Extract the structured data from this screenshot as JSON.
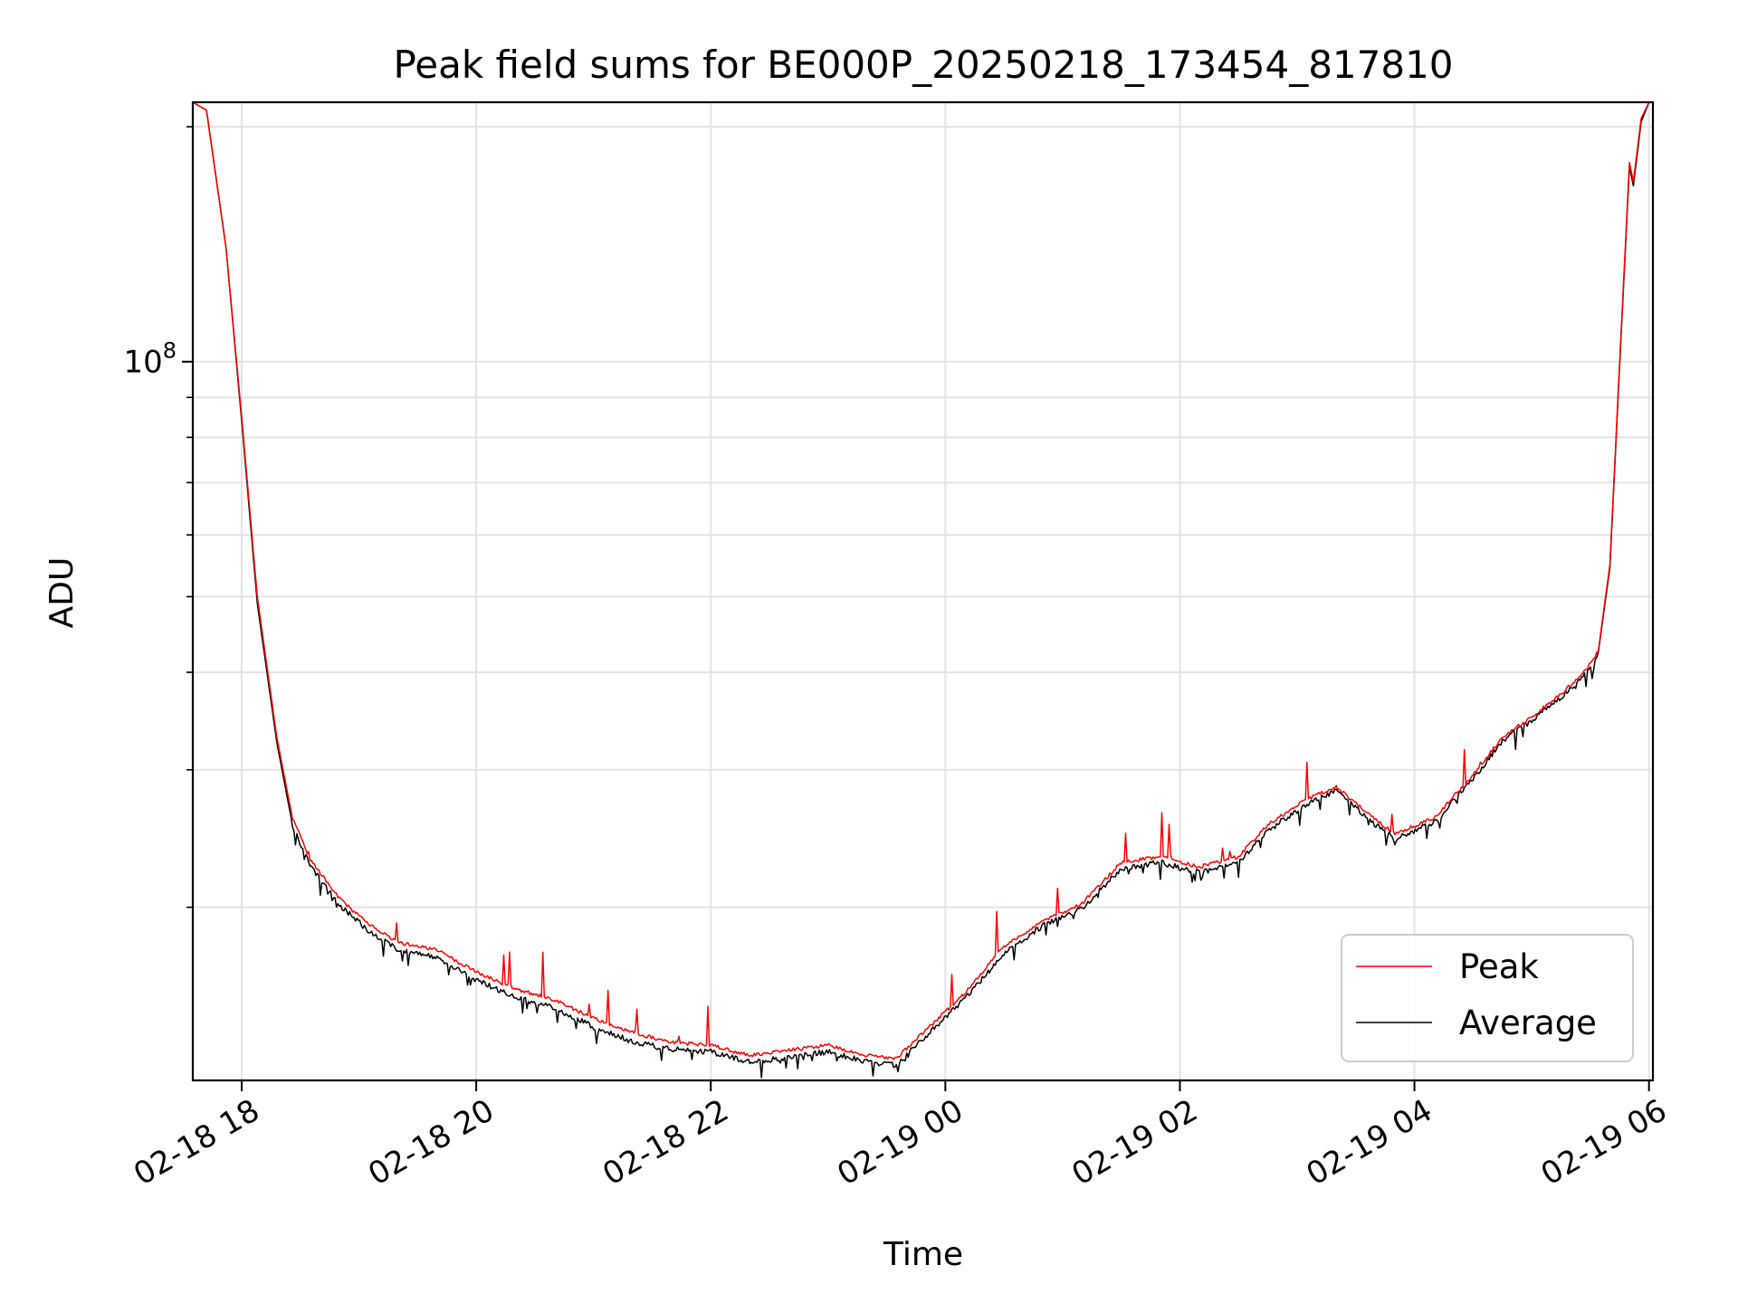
{
  "chart_data": {
    "type": "line",
    "title": "Peak field sums for BE000P_20250218_173454_817810",
    "xlabel": "Time",
    "ylabel": "ADU",
    "y_scale": "log",
    "ylim": [
      12000000,
      215000000
    ],
    "xlim": [
      "2025-02-18 17:35",
      "2025-02-19 06:02"
    ],
    "x_tick_labels": [
      "02-18 18",
      "02-18 20",
      "02-18 22",
      "02-19 00",
      "02-19 02",
      "02-19 04",
      "02-19 06"
    ],
    "x_ticks": [
      "2025-02-18 18:00",
      "2025-02-18 20:00",
      "2025-02-18 22:00",
      "2025-02-19 00:00",
      "2025-02-19 02:00",
      "2025-02-19 04:00",
      "2025-02-19 06:00"
    ],
    "y_major_tick_labels": [
      "10^8"
    ],
    "y_major_ticks": [
      100000000
    ],
    "y_minor_ticks": [
      20000000,
      30000000,
      40000000,
      50000000,
      60000000,
      70000000,
      80000000,
      90000000,
      200000000
    ],
    "grid": true,
    "legend_placement": "lower-right",
    "series": [
      {
        "name": "Peak",
        "color": "#ff0000",
        "x": [
          "2025-02-18 17:35",
          "2025-02-18 17:42",
          "2025-02-18 17:52",
          "2025-02-18 18:00",
          "2025-02-18 18:08",
          "2025-02-18 18:18",
          "2025-02-18 18:26",
          "2025-02-18 18:35",
          "2025-02-18 18:50",
          "2025-02-18 19:05",
          "2025-02-18 19:20",
          "2025-02-18 19:40",
          "2025-02-18 20:00",
          "2025-02-18 20:20",
          "2025-02-18 20:40",
          "2025-02-18 21:00",
          "2025-02-18 21:20",
          "2025-02-18 21:40",
          "2025-02-18 22:00",
          "2025-02-18 22:20",
          "2025-02-18 22:40",
          "2025-02-18 23:00",
          "2025-02-18 23:20",
          "2025-02-18 23:35",
          "2025-02-18 23:50",
          "2025-02-19 00:10",
          "2025-02-19 00:30",
          "2025-02-19 00:50",
          "2025-02-19 01:10",
          "2025-02-19 01:30",
          "2025-02-19 01:50",
          "2025-02-19 02:10",
          "2025-02-19 02:30",
          "2025-02-19 02:45",
          "2025-02-19 03:05",
          "2025-02-19 03:20",
          "2025-02-19 03:35",
          "2025-02-19 03:50",
          "2025-02-19 04:10",
          "2025-02-19 04:30",
          "2025-02-19 04:45",
          "2025-02-19 05:00",
          "2025-02-19 05:15",
          "2025-02-19 05:27",
          "2025-02-19 05:34",
          "2025-02-19 05:40",
          "2025-02-19 05:45",
          "2025-02-19 05:50",
          "2025-02-19 05:52",
          "2025-02-19 05:56",
          "2025-02-19 06:00"
        ],
        "values": [
          215000000,
          210000000,
          140000000,
          85000000,
          50000000,
          33000000,
          26000000,
          23000000,
          20500000,
          19000000,
          18000000,
          17600000,
          16500000,
          15700000,
          15200000,
          14400000,
          13800000,
          13400000,
          13300000,
          12900000,
          13100000,
          13300000,
          12900000,
          12800000,
          13900000,
          15500000,
          17800000,
          19200000,
          20200000,
          22800000,
          23200000,
          22500000,
          23200000,
          25500000,
          27500000,
          28500000,
          26500000,
          24800000,
          26000000,
          29500000,
          33000000,
          35000000,
          37500000,
          40000000,
          42500000,
          55000000,
          100000000,
          180000000,
          170000000,
          205000000,
          215000000
        ]
      },
      {
        "name": "Average",
        "color": "#000000",
        "x": [
          "2025-02-18 17:35",
          "2025-02-18 17:42",
          "2025-02-18 17:52",
          "2025-02-18 18:00",
          "2025-02-18 18:08",
          "2025-02-18 18:18",
          "2025-02-18 18:26",
          "2025-02-18 18:35",
          "2025-02-18 18:50",
          "2025-02-18 19:05",
          "2025-02-18 19:20",
          "2025-02-18 19:40",
          "2025-02-18 20:00",
          "2025-02-18 20:20",
          "2025-02-18 20:40",
          "2025-02-18 21:00",
          "2025-02-18 21:20",
          "2025-02-18 21:40",
          "2025-02-18 22:00",
          "2025-02-18 22:20",
          "2025-02-18 22:40",
          "2025-02-18 23:00",
          "2025-02-18 23:20",
          "2025-02-18 23:35",
          "2025-02-18 23:50",
          "2025-02-19 00:10",
          "2025-02-19 00:30",
          "2025-02-19 00:50",
          "2025-02-19 01:10",
          "2025-02-19 01:30",
          "2025-02-19 01:50",
          "2025-02-19 02:10",
          "2025-02-19 02:30",
          "2025-02-19 02:45",
          "2025-02-19 03:05",
          "2025-02-19 03:20",
          "2025-02-19 03:35",
          "2025-02-19 03:50",
          "2025-02-19 04:10",
          "2025-02-19 04:30",
          "2025-02-19 04:45",
          "2025-02-19 05:00",
          "2025-02-19 05:15",
          "2025-02-19 05:27",
          "2025-02-19 05:34",
          "2025-02-19 05:40",
          "2025-02-19 05:45",
          "2025-02-19 05:50",
          "2025-02-19 05:52",
          "2025-02-19 05:56",
          "2025-02-19 06:00"
        ],
        "values": [
          215000000,
          210000000,
          140000000,
          84000000,
          49000000,
          32500000,
          25500000,
          22700000,
          20200000,
          18700000,
          17700000,
          17300000,
          16200000,
          15400000,
          14900000,
          14100000,
          13500000,
          13200000,
          13100000,
          12700000,
          12900000,
          13100000,
          12700000,
          12600000,
          13700000,
          15300000,
          17500000,
          19000000,
          20000000,
          22500000,
          22900000,
          22200000,
          22900000,
          25200000,
          27200000,
          28300000,
          26200000,
          24500000,
          25800000,
          29300000,
          32800000,
          34800000,
          37300000,
          39800000,
          42300000,
          54500000,
          99000000,
          178000000,
          168000000,
          203000000,
          215000000
        ]
      }
    ]
  }
}
